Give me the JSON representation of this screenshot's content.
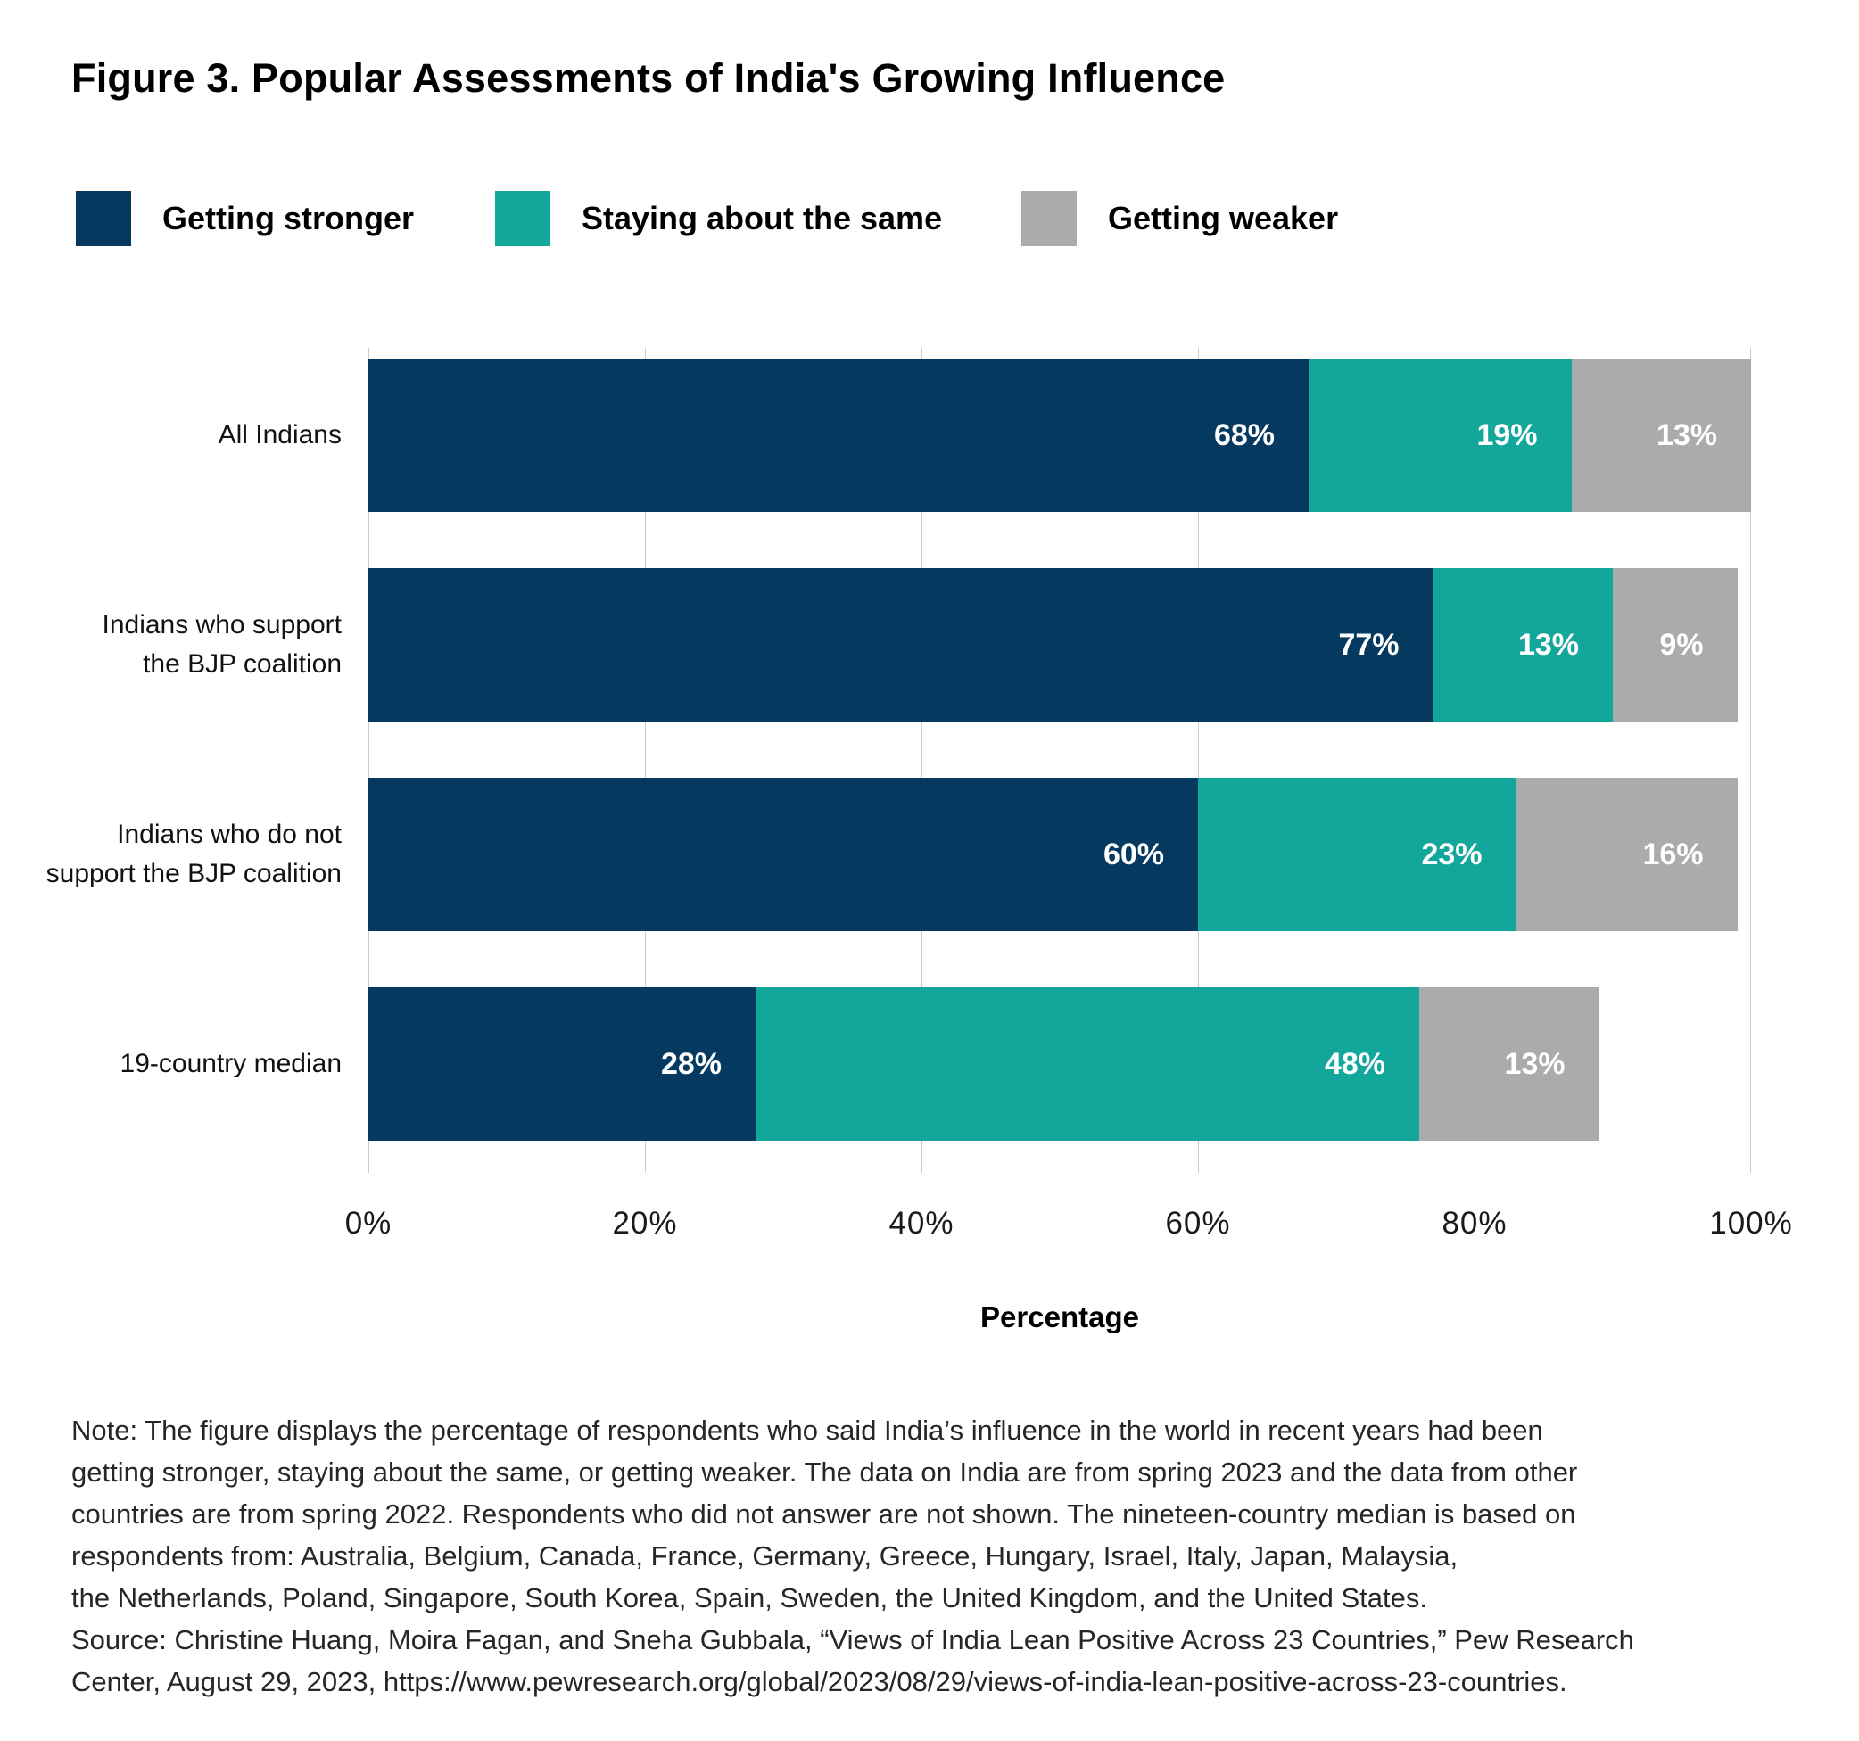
{
  "title": "Figure 3. Popular Assessments of India's Growing Influence",
  "legend": {
    "items": [
      {
        "label": "Getting stronger",
        "color": "#05395f"
      },
      {
        "label": "Staying about the same",
        "color": "#13a79c"
      },
      {
        "label": "Getting weaker",
        "color": "#a9abac"
      }
    ]
  },
  "chart_data": {
    "type": "bar",
    "orientation": "horizontal",
    "stacked": true,
    "title": "Figure 3. Popular Assessments of India's Growing Influence",
    "categories": [
      [
        "All Indians"
      ],
      [
        "Indians who support",
        "the BJP coalition"
      ],
      [
        "Indians who do not",
        "support the BJP coalition"
      ],
      [
        "19-country median"
      ]
    ],
    "series": [
      {
        "name": "Getting stronger",
        "color": "#05395f",
        "values": [
          68,
          77,
          60,
          28
        ]
      },
      {
        "name": "Staying about the same",
        "color": "#13a79c",
        "values": [
          19,
          13,
          23,
          48
        ]
      },
      {
        "name": "Getting weaker",
        "color": "#a9abac",
        "values": [
          13,
          9,
          16,
          13
        ]
      }
    ],
    "value_suffix": "%",
    "xlabel": "Percentage",
    "x_ticks": [
      "0%",
      "20%",
      "40%",
      "60%",
      "80%",
      "100%"
    ],
    "xlim": [
      0,
      100
    ],
    "grid": true,
    "gridline_color": "#cccccc",
    "legend_position": "top",
    "bar_label_color": "#ffffff"
  },
  "notes": {
    "lines": [
      "Note: The figure displays the percentage of respondents who said India’s influence in the world in recent years had been",
      "getting stronger, staying about the same, or getting weaker. The data on India are from spring 2023 and the data from other",
      "countries are from spring 2022. Respondents who did not answer are not shown. The nineteen-country median is based on",
      "respondents from: Australia, Belgium, Canada, France, Germany, Greece, Hungary, Israel, Italy, Japan, Malaysia,",
      "the Netherlands, Poland, Singapore, South Korea, Spain, Sweden, the United Kingdom, and the United States.",
      "Source: Christine Huang, Moira Fagan, and Sneha Gubbala, “Views of India Lean Positive Across 23 Countries,” Pew Research",
      "Center, August 29, 2023, https://www.pewresearch.org/global/2023/08/29/views-of-india-lean-positive-across-23-countries."
    ]
  }
}
